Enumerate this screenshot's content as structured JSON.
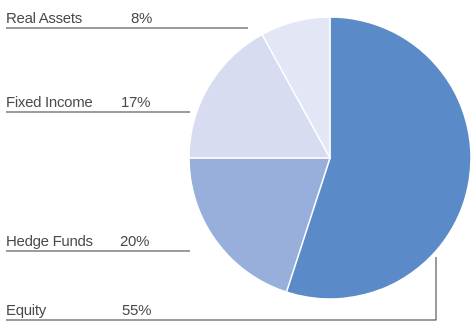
{
  "chart_data": {
    "type": "pie",
    "start_angle_deg": 0,
    "direction": "clockwise",
    "legend": "leader-line labels, left",
    "slices": [
      {
        "label": "Equity",
        "pct_label": "55%",
        "value": 55,
        "color": "#5b8ac8"
      },
      {
        "label": "Hedge Funds",
        "pct_label": "20%",
        "value": 20,
        "color": "#98aedb"
      },
      {
        "label": "Fixed Income",
        "pct_label": "17%",
        "value": 17,
        "color": "#d7dcf1"
      },
      {
        "label": "Real Assets",
        "pct_label": "8%",
        "value": 8,
        "color": "#e3e7f5"
      }
    ]
  }
}
